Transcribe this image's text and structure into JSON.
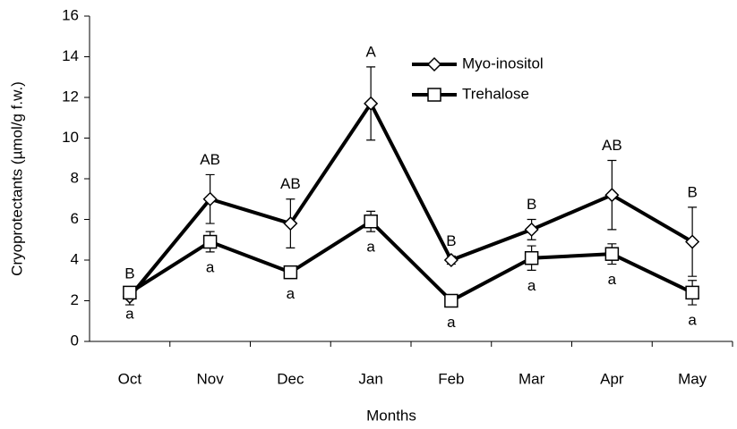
{
  "chart_data": {
    "type": "line",
    "x_label": "Months",
    "y_label": "Cryoprotectants (µmol/g f.w.)",
    "categories": [
      "Oct",
      "Nov",
      "Dec",
      "Jan",
      "Feb",
      "Mar",
      "Apr",
      "May"
    ],
    "series": [
      {
        "name": "Myo-inositol",
        "color": "#000000",
        "marker": "diamond",
        "values": [
          2.2,
          7.0,
          5.8,
          11.7,
          4.0,
          5.5,
          7.2,
          4.9
        ],
        "errors": [
          0.4,
          1.2,
          1.2,
          1.8,
          0.2,
          0.5,
          1.7,
          1.7
        ],
        "significance_labels": [
          "B",
          "AB",
          "AB",
          "A",
          "B",
          "B",
          "AB",
          "B"
        ]
      },
      {
        "name": "Trehalose",
        "color": "#000000",
        "marker": "square",
        "values": [
          2.4,
          4.9,
          3.4,
          5.9,
          2.0,
          4.1,
          4.3,
          2.4
        ],
        "errors": [
          0.3,
          0.5,
          0.3,
          0.5,
          0.3,
          0.6,
          0.5,
          0.6
        ],
        "significance_labels": [
          "a",
          "a",
          "a",
          "a",
          "a",
          "a",
          "a",
          "a"
        ]
      }
    ],
    "ylim": [
      0,
      16
    ],
    "yticks": [
      0,
      2,
      4,
      6,
      8,
      10,
      12,
      14,
      16
    ],
    "grid": false,
    "legend": "top"
  }
}
